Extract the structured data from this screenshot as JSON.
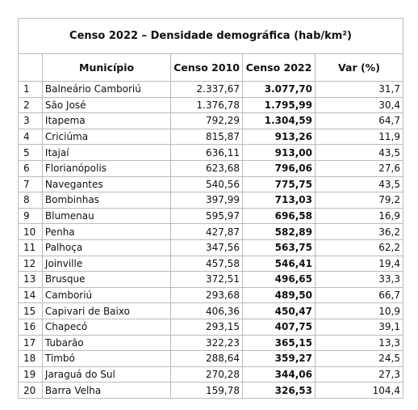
{
  "table": {
    "title": "Censo 2022 – Densidade demográfica (hab/km²)",
    "header": [
      "",
      "Município",
      "Censo 2010",
      "Censo 2022",
      "Var (%)"
    ],
    "rows": [
      [
        "1",
        "Balneário Camboriú",
        "2.337,67",
        "3.077,70",
        "31,7"
      ],
      [
        "2",
        "São José",
        "1.376,78",
        "1.795,99",
        "30,4"
      ],
      [
        "3",
        "Itapema",
        "792,29",
        "1.304,59",
        "64,7"
      ],
      [
        "4",
        "Criciúma",
        "815,87",
        "913,26",
        "11,9"
      ],
      [
        "5",
        "Itajaí",
        "636,11",
        "913,00",
        "43,5"
      ],
      [
        "6",
        "Florianópolis",
        "623,68",
        "796,06",
        "27,6"
      ],
      [
        "7",
        "Navegantes",
        "540,56",
        "775,75",
        "43,5"
      ],
      [
        "8",
        "Bombinhas",
        "397,99",
        "713,03",
        "79,2"
      ],
      [
        "9",
        "Blumenau",
        "595,97",
        "696,58",
        "16,9"
      ],
      [
        "10",
        "Penha",
        "427,87",
        "582,89",
        "36,2"
      ],
      [
        "11",
        "Palhoça",
        "347,56",
        "563,75",
        "62,2"
      ],
      [
        "12",
        "Joinville",
        "457,58",
        "546,41",
        "19,4"
      ],
      [
        "13",
        "Brusque",
        "372,51",
        "496,65",
        "33,3"
      ],
      [
        "14",
        "Camboriú",
        "293,68",
        "489,50",
        "66,7"
      ],
      [
        "15",
        "Capivari de Baixo",
        "406,36",
        "450,47",
        "10,9"
      ],
      [
        "16",
        "Chapecó",
        "293,15",
        "407,75",
        "39,1"
      ],
      [
        "17",
        "Tubarão",
        "322,23",
        "365,15",
        "13,3"
      ],
      [
        "18",
        "Timbó",
        "288,64",
        "359,27",
        "24,5"
      ],
      [
        "19",
        "Jaraguá do Sul",
        "270,28",
        "344,06",
        "27,3"
      ],
      [
        "20",
        "Barra Velha",
        "159,78",
        "326,53",
        "104,4"
      ]
    ]
  }
}
